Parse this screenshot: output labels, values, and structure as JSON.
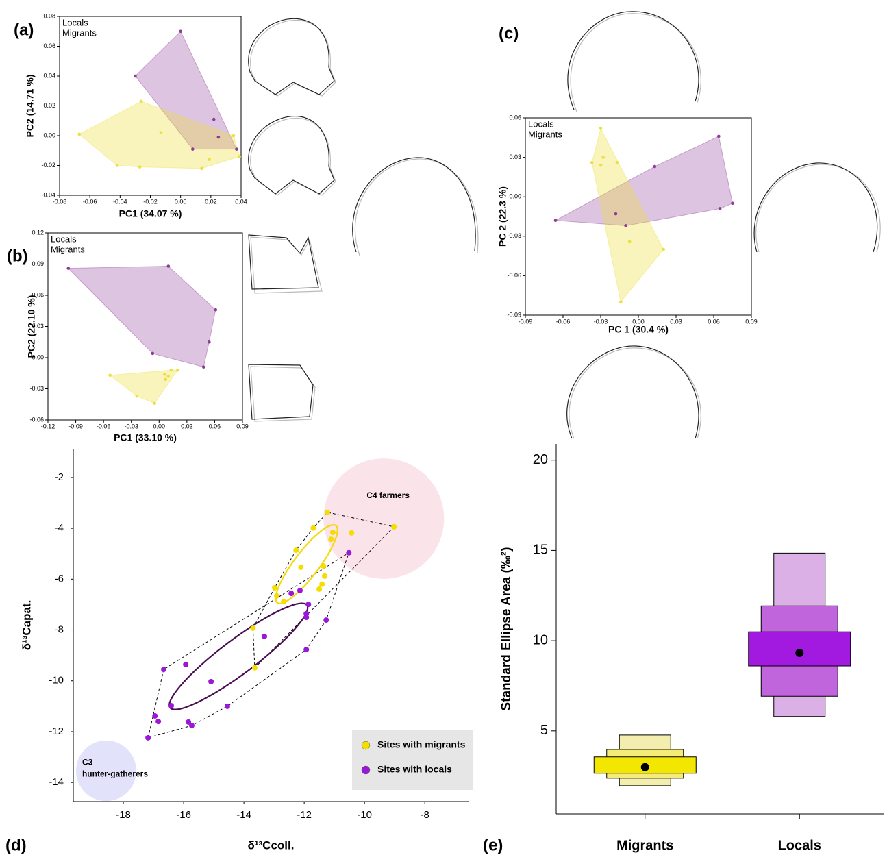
{
  "chart_data": [
    {
      "type": "scatter",
      "panel": "(a)",
      "x_label": "PC1 (34.07 %)",
      "y_label": "PC2 (14.71 %)",
      "xlim": [
        -0.08,
        0.04
      ],
      "ylim": [
        -0.04,
        0.08
      ],
      "xticks": [
        -0.08,
        -0.06,
        -0.04,
        -0.02,
        {
          "value": 0,
          "label": "0.00"
        },
        0.02,
        0.04
      ],
      "yticks": [
        -0.04,
        -0.02,
        {
          "value": 0,
          "label": "0.00"
        },
        0.02,
        0.04,
        0.06,
        0.08
      ],
      "series": [
        {
          "name": "Locals",
          "color": "#8e3b97",
          "x": [
            0.0,
            -0.03,
            0.022,
            0.025,
            0.008,
            0.037
          ],
          "values": [
            0.07,
            0.04,
            0.011,
            -0.001,
            -0.009,
            -0.009
          ]
        },
        {
          "name": "Migrants",
          "color": "#ece03e",
          "x": [
            -0.067,
            -0.026,
            -0.013,
            -0.042,
            -0.027,
            0.014,
            0.019,
            0.035,
            0.039
          ],
          "values": [
            0.001,
            0.023,
            0.002,
            -0.02,
            -0.021,
            -0.022,
            -0.016,
            0.0,
            -0.014
          ]
        }
      ]
    },
    {
      "type": "scatter",
      "panel": "(b)",
      "x_label": "PC1 (33.10 %)",
      "y_label": "PC2 (22.10 %)",
      "xlim": [
        -0.12,
        0.09
      ],
      "ylim": [
        -0.06,
        0.12
      ],
      "xticks": [
        -0.12,
        -0.09,
        -0.06,
        -0.03,
        {
          "value": 0,
          "label": "0.00"
        },
        0.03,
        0.06,
        0.09
      ],
      "yticks": [
        -0.06,
        -0.03,
        {
          "value": 0,
          "label": "0.00"
        },
        0.03,
        0.06,
        0.09,
        0.12
      ],
      "series": [
        {
          "name": "Locals",
          "color": "#8e3b97",
          "x": [
            -0.098,
            0.01,
            0.061,
            0.054,
            0.048,
            -0.007
          ],
          "values": [
            0.086,
            0.088,
            0.046,
            0.015,
            -0.009,
            0.004
          ]
        },
        {
          "name": "Migrants",
          "color": "#ece03e",
          "x": [
            -0.053,
            -0.024,
            -0.005,
            0.007,
            0.01,
            0.013,
            0.02,
            0.006
          ],
          "values": [
            -0.017,
            -0.037,
            -0.044,
            -0.021,
            -0.018,
            -0.012,
            -0.012,
            -0.016
          ]
        }
      ]
    },
    {
      "type": "scatter",
      "panel": "(c)",
      "x_label": "PC 1 (30.4 %)",
      "y_label": "PC 2 (22.3 %)",
      "xlim": [
        -0.09,
        0.09
      ],
      "ylim": [
        -0.09,
        0.06
      ],
      "xticks": [
        -0.09,
        -0.06,
        -0.03,
        {
          "value": 0,
          "label": "0.00"
        },
        0.03,
        0.06,
        0.09
      ],
      "yticks": [
        -0.09,
        -0.06,
        -0.03,
        {
          "value": 0,
          "label": "0.00"
        },
        0.03,
        0.06
      ],
      "series": [
        {
          "name": "Locals",
          "color": "#8e3b97",
          "x": [
            -0.066,
            -0.018,
            -0.01,
            0.013,
            0.064,
            0.065,
            0.075
          ],
          "values": [
            -0.018,
            -0.013,
            -0.022,
            0.023,
            0.046,
            -0.009,
            -0.005
          ]
        },
        {
          "name": "Migrants",
          "color": "#ece03e",
          "x": [
            -0.03,
            -0.037,
            -0.028,
            -0.03,
            -0.017,
            -0.007,
            0.02,
            -0.014
          ],
          "values": [
            0.052,
            0.026,
            0.03,
            0.024,
            0.026,
            -0.034,
            -0.04,
            -0.08
          ]
        }
      ]
    },
    {
      "type": "isotope",
      "panel": "(d)",
      "x_label": "δ¹³Ccoll.",
      "y_label": "δ¹³Capat.",
      "xlim": [
        -19.66,
        -6.55
      ],
      "ylim": [
        -14.75,
        -0.87
      ],
      "xticks": [
        -18,
        -16,
        -14,
        -12,
        -10,
        -8
      ],
      "yticks": [
        -14,
        -12,
        -10,
        -8,
        -6,
        -4,
        -2
      ],
      "regions": [
        {
          "label": [
            "C4 farmers"
          ],
          "color": "#fbe3ea",
          "center": [
            -9.36,
            -3.62
          ],
          "radius": [
            2.0,
            2.37
          ]
        },
        {
          "label": [
            "C3",
            "hunter-gatherers"
          ],
          "color": "#e2e2fb",
          "center": [
            -18.57,
            -13.54
          ],
          "radius": [
            1.0,
            1.19
          ]
        }
      ],
      "series": [
        {
          "name": "Sites with migrants",
          "color": "#f3de00",
          "x": [
            -11.23,
            -10.43,
            -11.05,
            -11.11,
            -11.7,
            -12.27,
            -12.11,
            -11.36,
            -11.32,
            -11.41,
            -11.5,
            -12.98,
            -12.91,
            -12.68,
            -13.7,
            -13.64,
            -9.02
          ],
          "values": [
            -3.37,
            -4.18,
            -4.16,
            -4.43,
            -3.99,
            -4.86,
            -5.53,
            -5.48,
            -5.88,
            -6.2,
            -6.39,
            -6.34,
            -6.66,
            -6.88,
            -7.93,
            -9.49,
            -3.94
          ],
          "ellipse": {
            "color": "#f5d90a",
            "center": [
              -11.92,
              -5.41
            ],
            "major": [
              0.97,
              1.52
            ],
            "minor": [
              0.33,
              -0.29
            ]
          }
        },
        {
          "name": "Sites with locals",
          "color": "#9a18d8",
          "x": [
            -10.52,
            -12.43,
            -12.14,
            -11.86,
            -11.93,
            -11.93,
            -11.27,
            -13.32,
            -11.93,
            -15.09,
            -15.93,
            -16.66,
            -16.41,
            -14.55,
            -16.95,
            -16.84,
            -15.84,
            -15.73,
            -17.18
          ],
          "values": [
            -4.96,
            -6.56,
            -6.45,
            -6.99,
            -7.36,
            -7.5,
            -7.61,
            -8.25,
            -8.77,
            -10.03,
            -9.36,
            -9.55,
            -10.98,
            -11.0,
            -11.38,
            -11.6,
            -11.62,
            -11.76,
            -12.24
          ],
          "ellipse": {
            "color": "#4a0d52",
            "center": [
              -14.18,
              -9.04
            ],
            "major": [
              2.27,
              2.02
            ],
            "minor": [
              0.34,
              -0.54
            ]
          }
        }
      ]
    },
    {
      "type": "interval",
      "panel": "(e)",
      "y_label": "Standard Ellipse Area (‰²)",
      "ylim": [
        0.4,
        20.9
      ],
      "yticks": [
        5,
        10,
        15,
        20
      ],
      "categories": [
        "Migrants",
        "Locals"
      ],
      "values": [
        2.99,
        9.32
      ],
      "intervals": [
        {
          "low": [
            1.96,
            5.8
          ],
          "high": [
            4.77,
            14.85
          ],
          "colors": [
            "#f3edb0",
            "#dab0e6"
          ]
        },
        {
          "low": [
            2.38,
            6.92
          ],
          "high": [
            3.97,
            11.93
          ],
          "colors": [
            "#f5ec77",
            "#c065dc"
          ]
        },
        {
          "low": [
            2.65,
            8.6
          ],
          "high": [
            3.56,
            10.49
          ],
          "colors": [
            "#f3e600",
            "#a21ae0"
          ]
        }
      ]
    }
  ]
}
